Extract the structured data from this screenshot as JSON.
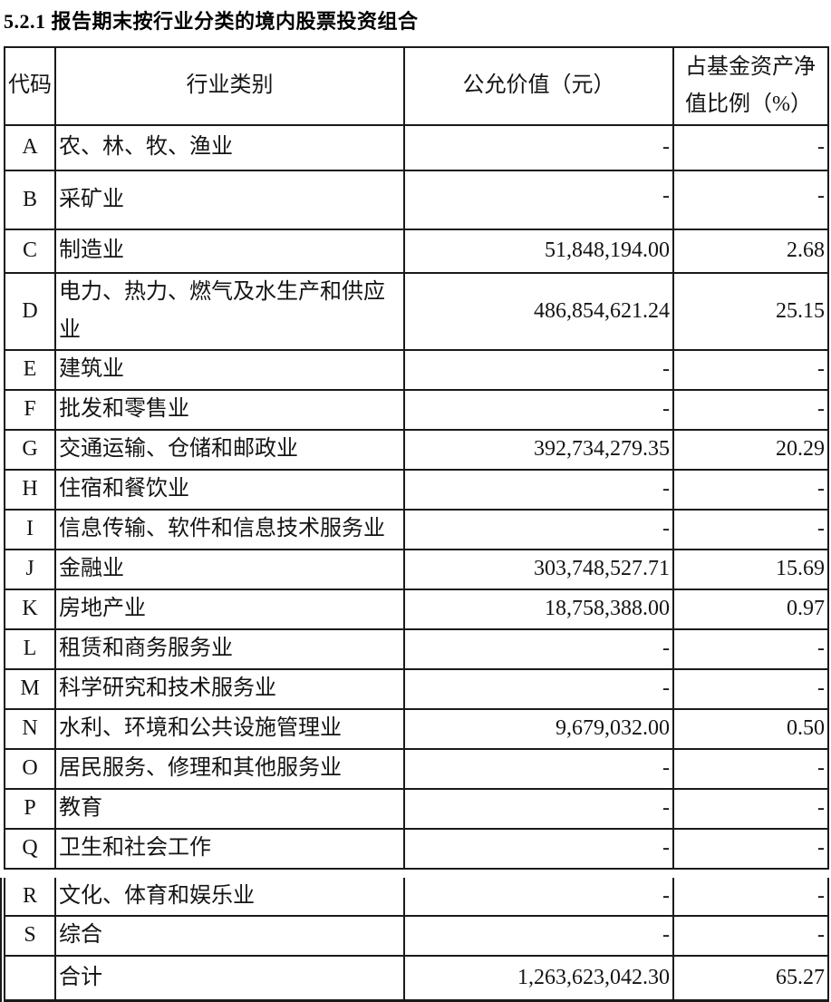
{
  "page": {
    "title": "5.2.1 报告期末按行业分类的境内股票投资组合"
  },
  "table": {
    "headers": {
      "code": "代码",
      "industry": "行业类别",
      "fair_value": "公允价值（元）",
      "pct": "占基金资产净值比例（%）"
    },
    "rows": [
      {
        "code": "A",
        "industry": "农、林、牧、渔业",
        "fair_value": "-",
        "pct": "-"
      },
      {
        "code": "B",
        "industry": "采矿业",
        "fair_value": "-",
        "pct": "-"
      },
      {
        "code": "C",
        "industry": "制造业",
        "fair_value": "51,848,194.00",
        "pct": "2.68"
      },
      {
        "code": "D",
        "industry": "电力、热力、燃气及水生产和供应业",
        "fair_value": "486,854,621.24",
        "pct": "25.15"
      },
      {
        "code": "E",
        "industry": "建筑业",
        "fair_value": "-",
        "pct": "-"
      },
      {
        "code": "F",
        "industry": "批发和零售业",
        "fair_value": "-",
        "pct": "-"
      },
      {
        "code": "G",
        "industry": "交通运输、仓储和邮政业",
        "fair_value": "392,734,279.35",
        "pct": "20.29"
      },
      {
        "code": "H",
        "industry": "住宿和餐饮业",
        "fair_value": "-",
        "pct": "-"
      },
      {
        "code": "I",
        "industry": "信息传输、软件和信息技术服务业",
        "fair_value": "-",
        "pct": "-"
      },
      {
        "code": "J",
        "industry": "金融业",
        "fair_value": "303,748,527.71",
        "pct": "15.69"
      },
      {
        "code": "K",
        "industry": "房地产业",
        "fair_value": "18,758,388.00",
        "pct": "0.97"
      },
      {
        "code": "L",
        "industry": "租赁和商务服务业",
        "fair_value": "-",
        "pct": "-"
      },
      {
        "code": "M",
        "industry": "科学研究和技术服务业",
        "fair_value": "-",
        "pct": "-"
      },
      {
        "code": "N",
        "industry": "水利、环境和公共设施管理业",
        "fair_value": "9,679,032.00",
        "pct": "0.50"
      },
      {
        "code": "O",
        "industry": "居民服务、修理和其他服务业",
        "fair_value": "-",
        "pct": "-"
      },
      {
        "code": "P",
        "industry": "教育",
        "fair_value": "-",
        "pct": "-"
      },
      {
        "code": "Q",
        "industry": "卫生和社会工作",
        "fair_value": "-",
        "pct": "-"
      },
      {
        "code": "R",
        "industry": "文化、体育和娱乐业",
        "fair_value": "-",
        "pct": "-"
      },
      {
        "code": "S",
        "industry": "综合",
        "fair_value": "-",
        "pct": "-"
      }
    ],
    "total": {
      "code": "",
      "label": "合计",
      "fair_value": "1,263,623,042.30",
      "pct": "65.27"
    }
  }
}
